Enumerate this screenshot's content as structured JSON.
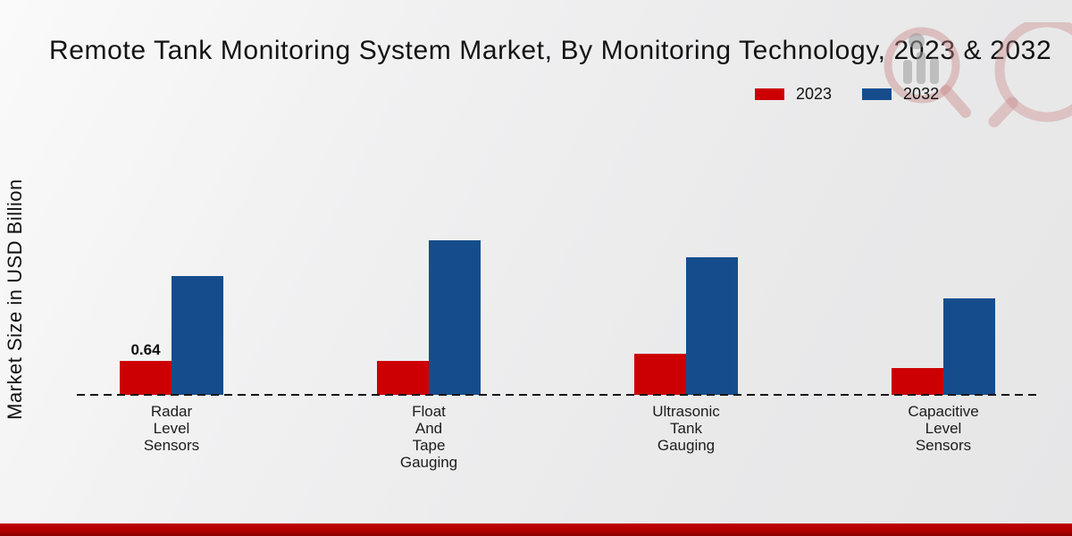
{
  "title": "Remote Tank Monitoring System Market, By Monitoring Technology, 2023 & 2032",
  "ylabel": "Market Size in USD Billion",
  "legend": {
    "items": [
      {
        "label": "2023",
        "color": "#cc0002"
      },
      {
        "label": "2032",
        "color": "#154d8c"
      }
    ]
  },
  "colors": {
    "series_2023": "#cc0002",
    "series_2032": "#154d8c",
    "footer_strip": "#b10000",
    "baseline": "#161616"
  },
  "chart_data": {
    "type": "bar",
    "title": "Remote Tank Monitoring System Market, By Monitoring Technology, 2023 & 2032",
    "xlabel": "",
    "ylabel": "Market Size in USD Billion",
    "categories": [
      "Radar\nLevel\nSensors",
      "Float\nAnd\nTape\nGauging",
      "Ultrasonic\nTank\nGauging",
      "Capacitive\nLevel\nSensors"
    ],
    "series": [
      {
        "name": "2023",
        "color": "#cc0002",
        "values": [
          0.64,
          0.64,
          0.77,
          0.51
        ]
      },
      {
        "name": "2032",
        "color": "#154d8c",
        "values": [
          2.24,
          2.91,
          2.59,
          1.82
        ]
      }
    ],
    "bar_labels": [
      {
        "series_index": 0,
        "category_index": 0,
        "text": "0.64"
      }
    ],
    "ylim": [
      0,
      3.1
    ],
    "grid": false,
    "axis_ticks_visible": false,
    "legend_position": "top-right",
    "baseline_style": "dashed"
  }
}
